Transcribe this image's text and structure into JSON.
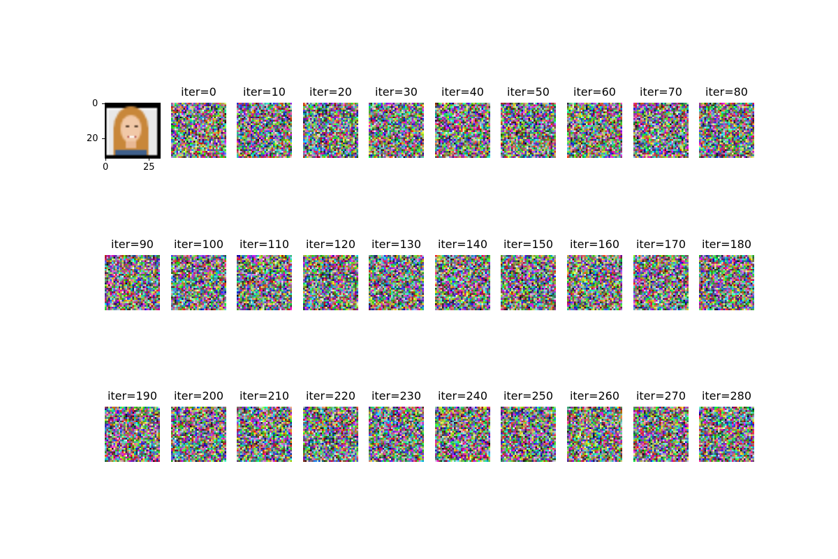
{
  "face": {
    "y_tick_labels": [
      "0",
      "20"
    ],
    "x_tick_labels": [
      "0",
      "25"
    ]
  },
  "panels": [
    "iter=0",
    "iter=10",
    "iter=20",
    "iter=30",
    "iter=40",
    "iter=50",
    "iter=60",
    "iter=70",
    "iter=80",
    "iter=90",
    "iter=100",
    "iter=110",
    "iter=120",
    "iter=130",
    "iter=140",
    "iter=150",
    "iter=160",
    "iter=170",
    "iter=180",
    "iter=190",
    "iter=200",
    "iter=210",
    "iter=220",
    "iter=230",
    "iter=240",
    "iter=250",
    "iter=260",
    "iter=270",
    "iter=280"
  ]
}
